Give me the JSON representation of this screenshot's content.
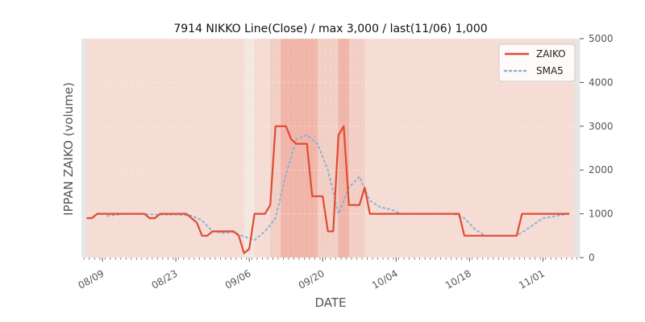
{
  "chart_data": {
    "type": "line",
    "title": "7914 NIKKO Line(Close) / max 3,000 / last(11/06) 1,000",
    "xlabel": "DATE",
    "ylabel": "IPPAN ZAIKO (volume)",
    "ylim": [
      0,
      5000
    ],
    "y_ticks": [
      0,
      1000,
      2000,
      3000,
      4000,
      5000
    ],
    "x_range": [
      "2021-08-05",
      "2021-11-08"
    ],
    "x_ticks": [
      {
        "date": "2021-08-09",
        "label": "08/09"
      },
      {
        "date": "2021-08-23",
        "label": "08/23"
      },
      {
        "date": "2021-09-06",
        "label": "09/06"
      },
      {
        "date": "2021-09-20",
        "label": "09/20"
      },
      {
        "date": "2021-10-04",
        "label": "10/04"
      },
      {
        "date": "2021-10-18",
        "label": "10/18"
      },
      {
        "date": "2021-11-01",
        "label": "11/01"
      }
    ],
    "grid": true,
    "legend_position": "top-right",
    "colors": {
      "zaiko": "#e24a33",
      "sma5": "#8eb0d3",
      "band_light": "#f5dcd4",
      "band_mid": "#f2cfc5",
      "band_dark": "#f0b5a8",
      "band_pale": "#f3e8df",
      "edge": "#e5e5e5"
    },
    "series": [
      {
        "name": "ZAIKO",
        "style": "solid",
        "x": [
          "2021-08-06",
          "2021-08-07",
          "2021-08-08",
          "2021-08-09",
          "2021-08-10",
          "2021-08-11",
          "2021-08-12",
          "2021-08-13",
          "2021-08-14",
          "2021-08-15",
          "2021-08-16",
          "2021-08-17",
          "2021-08-18",
          "2021-08-19",
          "2021-08-20",
          "2021-08-21",
          "2021-08-22",
          "2021-08-23",
          "2021-08-24",
          "2021-08-25",
          "2021-08-26",
          "2021-08-27",
          "2021-08-28",
          "2021-08-29",
          "2021-08-30",
          "2021-08-31",
          "2021-09-01",
          "2021-09-02",
          "2021-09-03",
          "2021-09-04",
          "2021-09-05",
          "2021-09-06",
          "2021-09-07",
          "2021-09-08",
          "2021-09-09",
          "2021-09-10",
          "2021-09-11",
          "2021-09-12",
          "2021-09-13",
          "2021-09-14",
          "2021-09-15",
          "2021-09-16",
          "2021-09-17",
          "2021-09-18",
          "2021-09-19",
          "2021-09-20",
          "2021-09-21",
          "2021-09-22",
          "2021-09-23",
          "2021-09-24",
          "2021-09-25",
          "2021-09-26",
          "2021-09-27",
          "2021-09-28",
          "2021-09-29",
          "2021-09-30",
          "2021-10-01",
          "2021-10-16",
          "2021-10-17",
          "2021-10-27",
          "2021-10-28",
          "2021-11-06"
        ],
        "values": [
          900,
          900,
          1000,
          1000,
          1000,
          1000,
          1000,
          1000,
          1000,
          1000,
          1000,
          1000,
          900,
          900,
          1000,
          1000,
          1000,
          1000,
          1000,
          1000,
          900,
          800,
          500,
          500,
          600,
          600,
          600,
          600,
          600,
          500,
          100,
          200,
          1000,
          1000,
          1000,
          1200,
          3000,
          3000,
          3000,
          2700,
          2600,
          2600,
          2600,
          1400,
          1400,
          1400,
          600,
          600,
          2800,
          3000,
          1200,
          1200,
          1200,
          1600,
          1000,
          1000,
          1000,
          1000,
          500,
          500,
          1000,
          1000
        ]
      },
      {
        "name": "SMA5",
        "style": "dotted",
        "x": [
          "2021-08-10",
          "2021-08-13",
          "2021-08-16",
          "2021-08-20",
          "2021-08-23",
          "2021-08-26",
          "2021-08-28",
          "2021-08-30",
          "2021-09-01",
          "2021-09-03",
          "2021-09-05",
          "2021-09-07",
          "2021-09-09",
          "2021-09-11",
          "2021-09-13",
          "2021-09-15",
          "2021-09-17",
          "2021-09-19",
          "2021-09-21",
          "2021-09-23",
          "2021-09-25",
          "2021-09-27",
          "2021-09-29",
          "2021-10-01",
          "2021-10-03",
          "2021-10-05",
          "2021-10-15",
          "2021-10-17",
          "2021-10-19",
          "2021-10-21",
          "2021-10-27",
          "2021-10-29",
          "2021-11-01",
          "2021-11-06"
        ],
        "values": [
          950,
          1000,
          1000,
          980,
          980,
          960,
          850,
          600,
          560,
          580,
          480,
          400,
          600,
          900,
          1900,
          2700,
          2800,
          2600,
          2000,
          1000,
          1600,
          1850,
          1300,
          1150,
          1100,
          1000,
          1000,
          900,
          650,
          500,
          500,
          650,
          900,
          1000
        ]
      }
    ]
  }
}
